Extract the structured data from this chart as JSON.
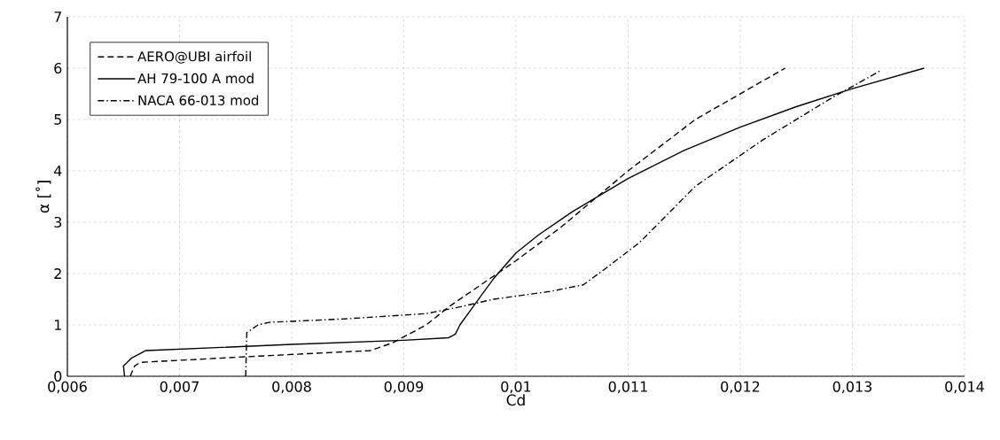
{
  "chart_data": {
    "type": "line",
    "xlabel": "Cd",
    "ylabel": "α [˚]",
    "xlim": [
      0.006,
      0.014
    ],
    "xticks": [
      {
        "value": 0.006,
        "label": "0,006"
      },
      {
        "value": 0.007,
        "label": "0,007"
      },
      {
        "value": 0.008,
        "label": "0,008"
      },
      {
        "value": 0.009,
        "label": "0,009"
      },
      {
        "value": 0.01,
        "label": "0,01"
      },
      {
        "value": 0.011,
        "label": "0,011"
      },
      {
        "value": 0.012,
        "label": "0,012"
      },
      {
        "value": 0.013,
        "label": "0,013"
      },
      {
        "value": 0.014,
        "label": "0,014"
      }
    ],
    "ylim": [
      0,
      7
    ],
    "yticks": [
      0,
      1,
      2,
      3,
      4,
      5,
      6,
      7
    ],
    "grid": true,
    "legend": "top left",
    "marker": "none",
    "series": [
      {
        "name": "AERO@UBI airfoil",
        "color": "#000000",
        "line_style": "dashed",
        "x": [
          0.00656,
          0.0066,
          0.00665,
          0.0076,
          0.0087,
          0.0089,
          0.0092,
          0.0094,
          0.0097,
          0.01,
          0.0104,
          0.011,
          0.0116,
          0.0124
        ],
        "values": [
          0,
          0.2,
          0.27,
          0.38,
          0.5,
          0.65,
          1.0,
          1.35,
          1.8,
          2.25,
          2.9,
          4.0,
          5.0,
          6.0
        ]
      },
      {
        "name": "AH 79-100 A mod",
        "color": "#000000",
        "line_style": "solid",
        "x": [
          0.00651,
          0.0065,
          0.00657,
          0.0067,
          0.008,
          0.009,
          0.0094,
          0.00946,
          0.0095,
          0.0096,
          0.0097,
          0.0098,
          0.01,
          0.0102,
          0.0105,
          0.011,
          0.0115,
          0.012,
          0.0125,
          0.013,
          0.01364
        ],
        "values": [
          0,
          0.2,
          0.35,
          0.5,
          0.62,
          0.7,
          0.75,
          0.82,
          1.0,
          1.3,
          1.6,
          1.9,
          2.4,
          2.75,
          3.2,
          3.85,
          4.4,
          4.85,
          5.25,
          5.6,
          6.0
        ]
      },
      {
        "name": "NACA 66-013 mod",
        "color": "#000000",
        "line_style": "dashdot",
        "x": [
          0.00759,
          0.0076,
          0.0077,
          0.0078,
          0.0085,
          0.0092,
          0.0095,
          0.0098,
          0.0103,
          0.0106,
          0.0108,
          0.0111,
          0.0116,
          0.0122,
          0.0128,
          0.01325
        ],
        "values": [
          0,
          0.85,
          1.0,
          1.05,
          1.12,
          1.22,
          1.35,
          1.5,
          1.65,
          1.78,
          2.1,
          2.6,
          3.7,
          4.6,
          5.4,
          5.95
        ]
      }
    ]
  }
}
